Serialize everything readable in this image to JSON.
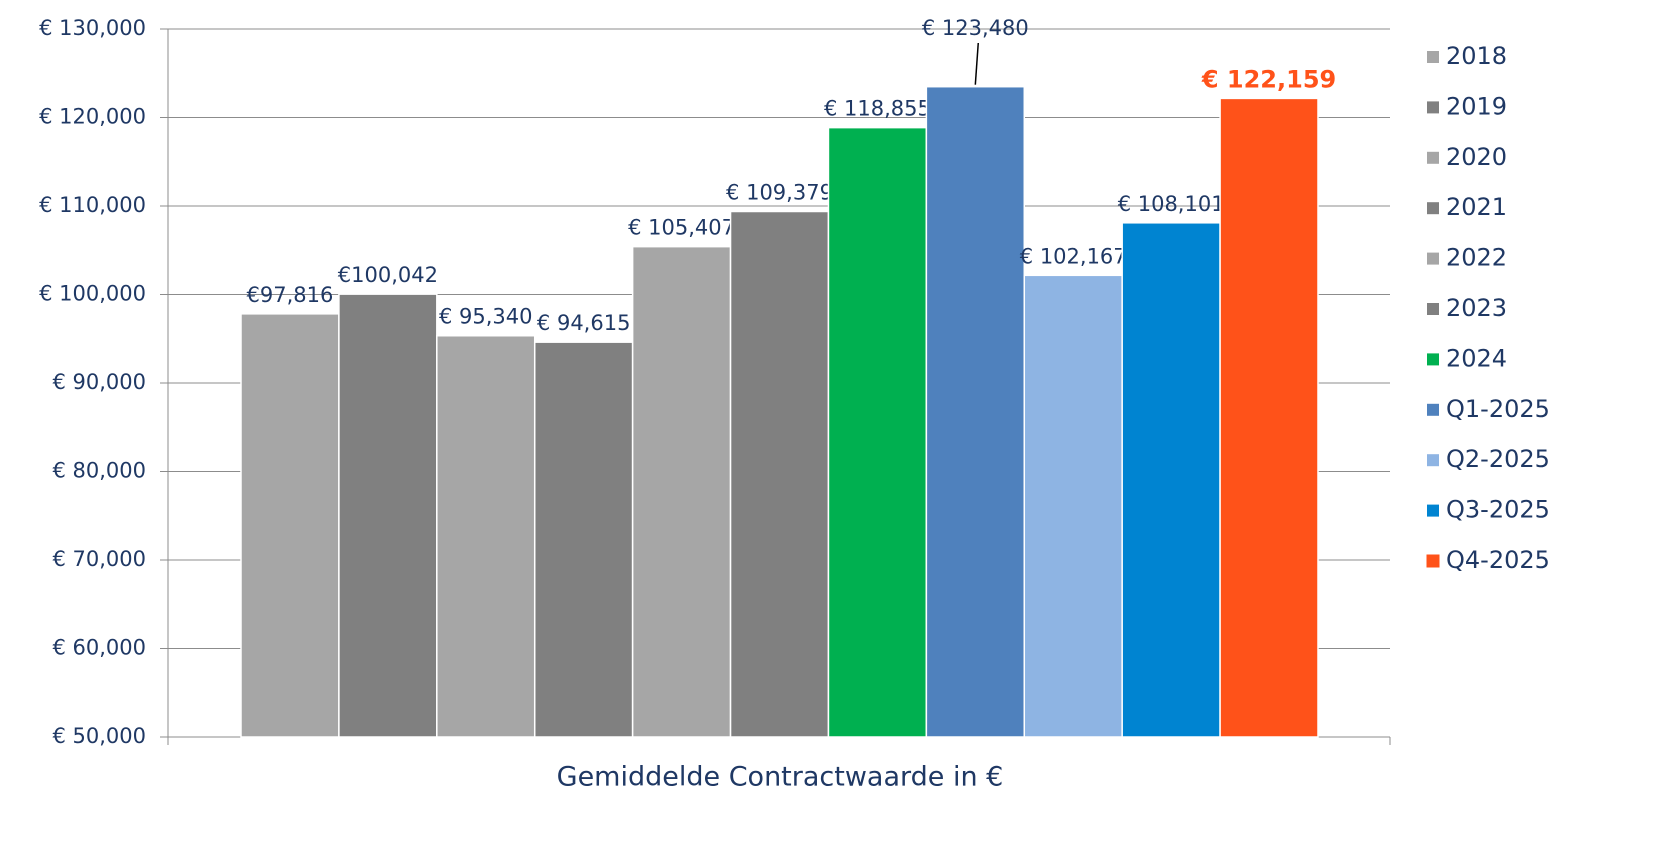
{
  "chart_data": {
    "type": "bar",
    "x_label": "Gemiddelde Contractwaarde in €",
    "ylim": [
      50000,
      130000
    ],
    "yticks": [
      {
        "value": 50000,
        "label": "€ 50,000"
      },
      {
        "value": 60000,
        "label": "€ 60,000"
      },
      {
        "value": 70000,
        "label": "€ 70,000"
      },
      {
        "value": 80000,
        "label": "€ 80,000"
      },
      {
        "value": 90000,
        "label": "€ 90,000"
      },
      {
        "value": 100000,
        "label": "€ 100,000"
      },
      {
        "value": 110000,
        "label": "€ 110,000"
      },
      {
        "value": 120000,
        "label": "€ 120,000"
      },
      {
        "value": 130000,
        "label": "€ 130,000"
      }
    ],
    "grid": true,
    "legend": "right",
    "series": [
      {
        "name": "2018",
        "color": "#a6a6a6",
        "values": [
          97816
        ],
        "value_labels": [
          "€97,816"
        ]
      },
      {
        "name": "2019",
        "color": "#808080",
        "values": [
          100042
        ],
        "value_labels": [
          "€100,042"
        ]
      },
      {
        "name": "2020",
        "color": "#a6a6a6",
        "values": [
          95340
        ],
        "value_labels": [
          "€ 95,340"
        ]
      },
      {
        "name": "2021",
        "color": "#808080",
        "values": [
          94615
        ],
        "value_labels": [
          "€ 94,615"
        ]
      },
      {
        "name": "2022",
        "color": "#a6a6a6",
        "values": [
          105407
        ],
        "value_labels": [
          "€ 105,407"
        ]
      },
      {
        "name": "2023",
        "color": "#808080",
        "values": [
          109379
        ],
        "value_labels": [
          "€ 109,379"
        ]
      },
      {
        "name": "2024",
        "color": "#00b050",
        "values": [
          118855
        ],
        "value_labels": [
          "€ 118,855"
        ]
      },
      {
        "name": "Q1-2025",
        "color": "#4f81bd",
        "values": [
          123480
        ],
        "value_labels": [
          "€ 123,480"
        ]
      },
      {
        "name": "Q2-2025",
        "color": "#8eb4e3",
        "values": [
          102167
        ],
        "value_labels": [
          "€ 102,167"
        ]
      },
      {
        "name": "Q3-2025",
        "color": "#0084d1",
        "values": [
          108101
        ],
        "value_labels": [
          "€ 108,101"
        ]
      },
      {
        "name": "Q4-2025",
        "color": "#ff5219",
        "values": [
          122159
        ],
        "value_labels": [
          "€ 122,159"
        ],
        "label_color": "#ff5219",
        "label_bold": true
      }
    ]
  }
}
